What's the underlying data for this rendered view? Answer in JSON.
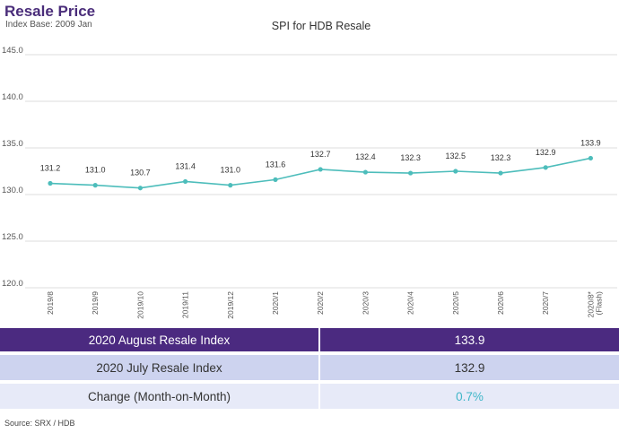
{
  "header": {
    "title": "Resale Price",
    "subtitle": "Index Base: 2009 Jan"
  },
  "chart_data": {
    "type": "line",
    "title": "SPI for HDB Resale",
    "categories": [
      "2019/8",
      "2019/9",
      "2019/10",
      "2019/11",
      "2019/12",
      "2020/1",
      "2020/2",
      "2020/3",
      "2020/4",
      "2020/5",
      "2020/6",
      "2020/7",
      "2020/8*\n(Flash)"
    ],
    "values": [
      131.2,
      131.0,
      130.7,
      131.4,
      131.0,
      131.6,
      132.7,
      132.4,
      132.3,
      132.5,
      132.3,
      132.9,
      133.9
    ],
    "value_labels": [
      "131.2",
      "131.0",
      "130.7",
      "131.4",
      "131.0",
      "131.6",
      "132.7",
      "132.4",
      "132.3",
      "132.5",
      "132.3",
      "132.9",
      "133.9"
    ],
    "ylim": [
      120,
      145
    ],
    "yticks": [
      "120.0",
      "125.0",
      "130.0",
      "135.0",
      "140.0",
      "145.0"
    ],
    "ytick_values": [
      120,
      125,
      130,
      135,
      140,
      145
    ],
    "grid": true,
    "line_color": "#4dbdbb"
  },
  "table": {
    "rows": [
      {
        "label": "2020 August Resale Index",
        "value": "133.9"
      },
      {
        "label": "2020 July Resale Index",
        "value": "132.9"
      },
      {
        "label": "Change (Month-on-Month)",
        "value": "0.7%"
      }
    ],
    "header_color": "#4b2a80",
    "change_color": "#3fb6c8"
  },
  "source": "Source: SRX / HDB"
}
